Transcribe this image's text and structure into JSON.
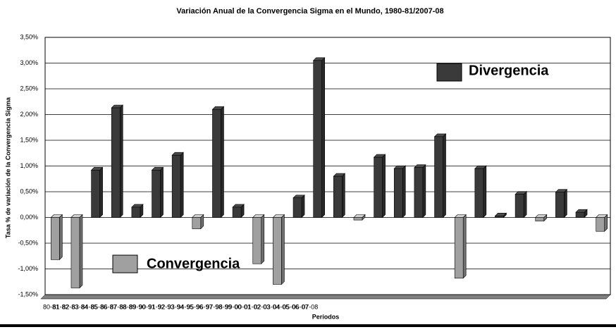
{
  "chart_data": {
    "type": "bar",
    "title": "Variación Anual de la Convergencia Sigma en el Mundo, 1980-81/2007-08",
    "ylabel": "Tasa % de variación de la Convergencia Sigma",
    "xlabel": "Períodos",
    "categories": [
      "80-81",
      "81-82",
      "82-83",
      "83-84",
      "84-85",
      "85-86",
      "86-87",
      "87-88",
      "88-89",
      "89-90",
      "90-91",
      "91-92",
      "92-93",
      "93-94",
      "94-95",
      "95-96",
      "96-97",
      "97-98",
      "98-99",
      "99-00",
      "00-01",
      "01-02",
      "02-03",
      "03-04",
      "04-05",
      "05-06",
      "06-07",
      "07-08"
    ],
    "series": [
      {
        "name": "Divergencia",
        "color": "#3a3a3a",
        "values": [
          null,
          null,
          0.92,
          2.13,
          0.2,
          0.92,
          1.21,
          null,
          2.1,
          0.2,
          null,
          null,
          0.38,
          3.05,
          0.8,
          null,
          1.17,
          0.95,
          0.97,
          1.57,
          null,
          0.95,
          0.03,
          0.45,
          null,
          0.49,
          0.1,
          null
        ]
      },
      {
        "name": "Convergencia",
        "color": "#a0a0a0",
        "values": [
          -0.82,
          -1.37,
          null,
          null,
          null,
          null,
          null,
          -0.22,
          null,
          null,
          -0.9,
          -1.3,
          null,
          null,
          null,
          -0.05,
          null,
          null,
          null,
          null,
          -1.18,
          null,
          null,
          null,
          -0.07,
          null,
          null,
          -0.27
        ]
      }
    ],
    "ylim": [
      -1.5,
      3.5
    ],
    "yticks": [
      {
        "value": -1.5,
        "label": "-1,50%"
      },
      {
        "value": -1,
        "label": "-1,00%"
      },
      {
        "value": -0.5,
        "label": "-0,50%"
      },
      {
        "value": 0,
        "label": "0,00%"
      },
      {
        "value": 0.5,
        "label": "0,50%"
      },
      {
        "value": 1,
        "label": "1,00%"
      },
      {
        "value": 1.5,
        "label": "1,50%"
      },
      {
        "value": 2,
        "label": "2,00%"
      },
      {
        "value": 2.5,
        "label": "2,50%"
      },
      {
        "value": 3,
        "label": "3,00%"
      },
      {
        "value": 3.5,
        "label": "3,50%"
      }
    ],
    "grid": true
  }
}
